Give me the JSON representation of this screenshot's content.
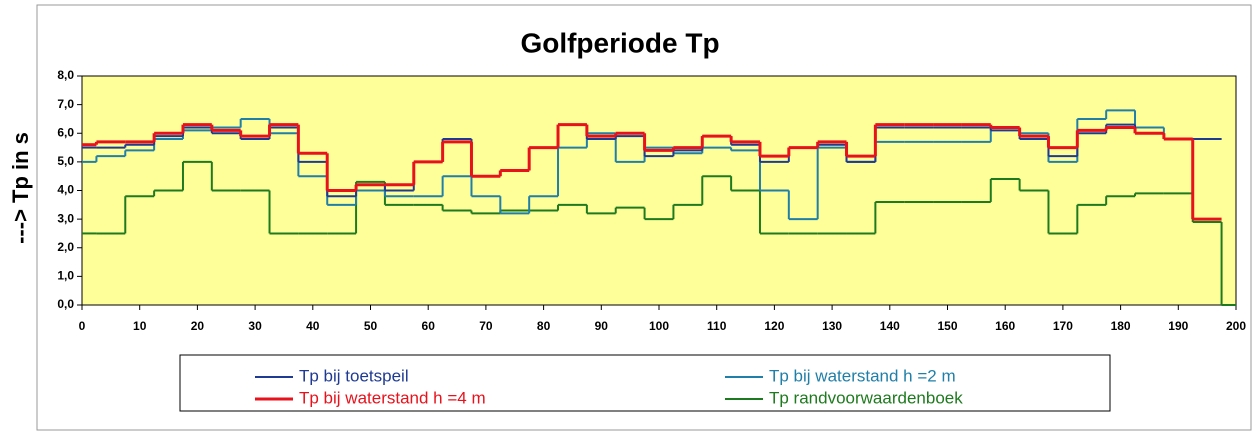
{
  "chart_data": {
    "type": "line",
    "title": "Golfperiode  Tp",
    "y_label": "---> Tp in s",
    "x": [
      0,
      5,
      10,
      15,
      20,
      25,
      30,
      35,
      40,
      45,
      50,
      55,
      60,
      65,
      70,
      75,
      80,
      85,
      90,
      95,
      100,
      105,
      110,
      115,
      120,
      125,
      130,
      135,
      140,
      145,
      150,
      155,
      160,
      165,
      170,
      175,
      180,
      185,
      190,
      195,
      200
    ],
    "series": [
      {
        "name": "Tp bij toetspeil",
        "color": "#1f3a93",
        "values": [
          5.5,
          5.5,
          5.6,
          5.9,
          6.2,
          6.0,
          5.8,
          6.2,
          5.0,
          3.8,
          4.2,
          4.0,
          5.0,
          5.8,
          4.5,
          4.7,
          5.5,
          6.3,
          5.8,
          5.9,
          5.2,
          5.4,
          5.9,
          5.6,
          5.0,
          5.5,
          5.6,
          5.0,
          6.2,
          6.2,
          6.2,
          6.2,
          6.1,
          5.8,
          5.2,
          6.0,
          6.3,
          6.0,
          5.8,
          5.8,
          null
        ]
      },
      {
        "name": "Tp bij waterstand h =2 m",
        "color": "#1f7fa8",
        "values": [
          5.0,
          5.2,
          5.4,
          5.8,
          6.1,
          6.2,
          6.5,
          6.0,
          4.5,
          3.5,
          4.0,
          3.8,
          3.8,
          4.5,
          3.8,
          3.2,
          3.8,
          5.5,
          6.0,
          5.0,
          5.5,
          5.3,
          5.5,
          5.4,
          4.0,
          3.0,
          5.5,
          5.0,
          5.7,
          5.7,
          5.7,
          5.7,
          6.2,
          6.0,
          5.0,
          6.5,
          6.8,
          6.2,
          5.8,
          5.8,
          null
        ]
      },
      {
        "name": "Tp bij waterstand h =4 m",
        "color": "#e8121c",
        "values": [
          5.6,
          5.7,
          5.7,
          6.0,
          6.3,
          6.1,
          5.9,
          6.3,
          5.3,
          4.0,
          4.2,
          4.2,
          5.0,
          5.7,
          4.5,
          4.7,
          5.5,
          6.3,
          5.9,
          6.0,
          5.4,
          5.5,
          5.9,
          5.7,
          5.2,
          5.5,
          5.7,
          5.2,
          6.3,
          6.3,
          6.3,
          6.3,
          6.2,
          5.9,
          5.5,
          6.1,
          6.2,
          6.0,
          5.8,
          3.0,
          null
        ]
      },
      {
        "name": "Tp randvoorwaardenboek",
        "color": "#1e7a1e",
        "values": [
          2.5,
          2.5,
          3.8,
          4.0,
          5.0,
          4.0,
          4.0,
          2.5,
          2.5,
          2.5,
          4.3,
          3.5,
          3.5,
          3.3,
          3.2,
          3.3,
          3.3,
          3.5,
          3.2,
          3.4,
          3.0,
          3.5,
          4.5,
          4.0,
          2.5,
          2.5,
          2.5,
          2.5,
          3.6,
          3.6,
          3.6,
          3.6,
          4.4,
          4.0,
          2.5,
          3.5,
          3.8,
          3.9,
          3.9,
          2.9,
          0
        ]
      }
    ],
    "xlim": [
      0,
      200
    ],
    "xticks": [
      0,
      10,
      20,
      30,
      40,
      50,
      60,
      70,
      80,
      90,
      100,
      110,
      120,
      130,
      140,
      150,
      160,
      170,
      180,
      190,
      200
    ],
    "ylim": [
      0,
      8
    ],
    "yticks": [
      {
        "value": 0,
        "label": "0,0"
      },
      {
        "value": 1,
        "label": "1,0"
      },
      {
        "value": 2,
        "label": "2,0"
      },
      {
        "value": 3,
        "label": "3,0"
      },
      {
        "value": 4,
        "label": "4,0"
      },
      {
        "value": 5,
        "label": "5,0"
      },
      {
        "value": 6,
        "label": "6,0"
      },
      {
        "value": 7,
        "label": "7,0"
      },
      {
        "value": 8,
        "label": "8,0"
      }
    ],
    "background": "#ffff99"
  }
}
